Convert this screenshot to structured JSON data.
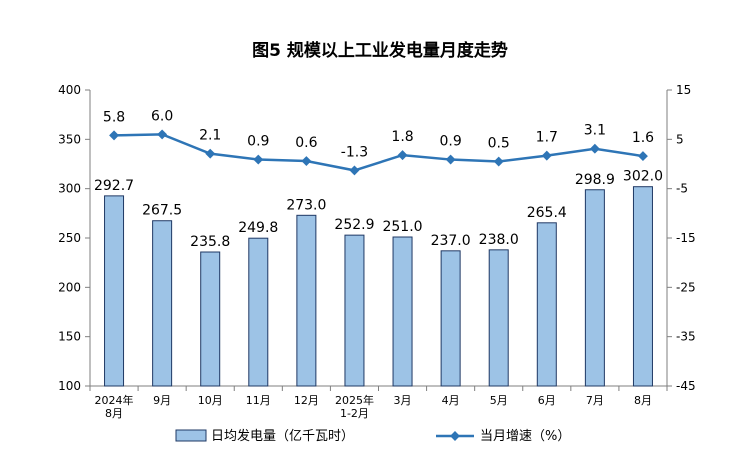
{
  "chart_data": {
    "type": "bar+line",
    "title": "图5 规模以上工业发电量月度走势",
    "categories": [
      [
        "2024年",
        "8月"
      ],
      [
        "9月"
      ],
      [
        "10月"
      ],
      [
        "11月"
      ],
      [
        "12月"
      ],
      [
        "2025年",
        "1-2月"
      ],
      [
        "3月"
      ],
      [
        "4月"
      ],
      [
        "5月"
      ],
      [
        "6月"
      ],
      [
        "7月"
      ],
      [
        "8月"
      ]
    ],
    "series": [
      {
        "name": "日均发电量（亿千瓦时）",
        "type": "bar",
        "axis": "left",
        "values": [
          292.7,
          267.5,
          235.8,
          249.8,
          273.0,
          252.9,
          251.0,
          237.0,
          238.0,
          265.4,
          298.9,
          302.0
        ],
        "labels": [
          "292.7",
          "267.5",
          "235.8",
          "249.8",
          "273.0",
          "252.9",
          "251.0",
          "237.0",
          "238.0",
          "265.4",
          "298.9",
          "302.0"
        ]
      },
      {
        "name": "当月增速（%）",
        "type": "line",
        "axis": "right",
        "values": [
          5.8,
          6.0,
          2.1,
          0.9,
          0.6,
          -1.3,
          1.8,
          0.9,
          0.5,
          1.7,
          3.1,
          1.6
        ],
        "labels": [
          "5.8",
          "6.0",
          "2.1",
          "0.9",
          "0.6",
          "-1.3",
          "1.8",
          "0.9",
          "0.5",
          "1.7",
          "3.1",
          "1.6"
        ]
      }
    ],
    "y_left": {
      "min": 100,
      "max": 400,
      "ticks": [
        100,
        150,
        200,
        250,
        300,
        350,
        400
      ]
    },
    "y_right": {
      "min": -45,
      "max": 15,
      "ticks": [
        -45,
        -35,
        -25,
        -15,
        -5,
        5,
        15
      ]
    },
    "legend_position": "bottom",
    "colors": {
      "bar_fill": "#9DC3E6",
      "bar_stroke": "#1F3864",
      "line": "#2E75B6",
      "axis": "#7F7F7F"
    }
  }
}
